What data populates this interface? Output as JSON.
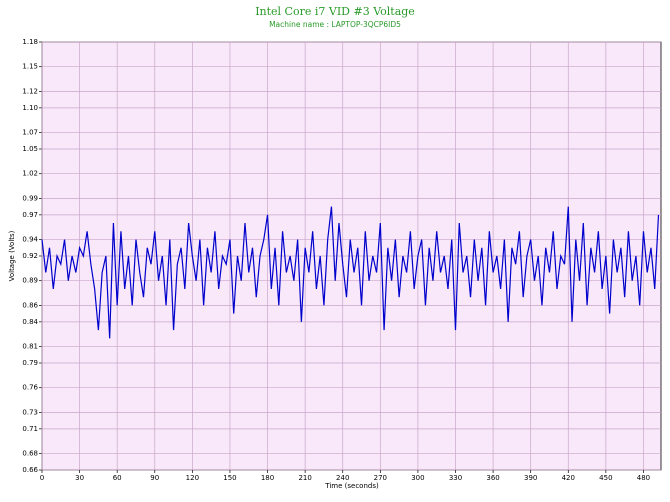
{
  "chart_data": {
    "type": "line",
    "title": "Intel Core i7 VID #3 Voltage",
    "subtitle": "Machine name : LAPTOP-3QCP6ID5",
    "x_label": "Time (seconds)",
    "y_label": "Voltage (Volts)",
    "grid": true,
    "xlim": [
      0,
      494
    ],
    "xticks": [
      0,
      30,
      60,
      90,
      120,
      150,
      180,
      210,
      240,
      270,
      300,
      330,
      360,
      390,
      420,
      450,
      480
    ],
    "ylim": [
      0.66,
      1.18
    ],
    "yticks": [
      0.66,
      0.68,
      0.71,
      0.73,
      0.76,
      0.79,
      0.81,
      0.84,
      0.86,
      0.89,
      0.92,
      0.94,
      0.97,
      0.99,
      1.02,
      1.05,
      1.07,
      {
        "value": 1.1,
        "label": "1.10"
      },
      1.12,
      1.15,
      1.18
    ],
    "x": [
      0,
      3,
      6,
      9,
      12,
      15,
      18,
      21,
      24,
      27,
      30,
      33,
      36,
      39,
      42,
      45,
      48,
      51,
      54,
      57,
      60,
      63,
      66,
      69,
      72,
      75,
      78,
      81,
      84,
      87,
      90,
      93,
      96,
      99,
      102,
      105,
      108,
      111,
      114,
      117,
      120,
      123,
      126,
      129,
      132,
      135,
      138,
      141,
      144,
      147,
      150,
      153,
      156,
      159,
      162,
      165,
      168,
      171,
      174,
      177,
      180,
      183,
      186,
      189,
      192,
      195,
      198,
      201,
      204,
      207,
      210,
      213,
      216,
      219,
      222,
      225,
      228,
      231,
      234,
      237,
      240,
      243,
      246,
      249,
      252,
      255,
      258,
      261,
      264,
      267,
      270,
      273,
      276,
      279,
      282,
      285,
      288,
      291,
      294,
      297,
      300,
      303,
      306,
      309,
      312,
      315,
      318,
      321,
      324,
      327,
      330,
      333,
      336,
      339,
      342,
      345,
      348,
      351,
      354,
      357,
      360,
      363,
      366,
      369,
      372,
      375,
      378,
      381,
      384,
      387,
      390,
      393,
      396,
      399,
      402,
      405,
      408,
      411,
      414,
      417,
      420,
      423,
      426,
      429,
      432,
      435,
      438,
      441,
      444,
      447,
      450,
      453,
      456,
      459,
      462,
      465,
      468,
      471,
      474,
      477,
      480,
      483,
      486,
      489,
      492
    ],
    "series": [
      {
        "name": "Voltage",
        "color": "#0000cc",
        "values": [
          0.94,
          0.9,
          0.93,
          0.88,
          0.92,
          0.91,
          0.94,
          0.89,
          0.92,
          0.9,
          0.93,
          0.92,
          0.95,
          0.91,
          0.88,
          0.83,
          0.9,
          0.92,
          0.82,
          0.96,
          0.86,
          0.95,
          0.88,
          0.92,
          0.86,
          0.94,
          0.9,
          0.87,
          0.93,
          0.91,
          0.95,
          0.89,
          0.92,
          0.86,
          0.94,
          0.83,
          0.91,
          0.93,
          0.88,
          0.96,
          0.92,
          0.89,
          0.94,
          0.86,
          0.93,
          0.9,
          0.95,
          0.88,
          0.92,
          0.91,
          0.94,
          0.85,
          0.92,
          0.89,
          0.96,
          0.9,
          0.93,
          0.87,
          0.92,
          0.94,
          0.97,
          0.88,
          0.93,
          0.86,
          0.95,
          0.9,
          0.92,
          0.89,
          0.94,
          0.84,
          0.93,
          0.9,
          0.95,
          0.88,
          0.92,
          0.86,
          0.94,
          0.98,
          0.89,
          0.96,
          0.91,
          0.87,
          0.94,
          0.9,
          0.93,
          0.86,
          0.95,
          0.89,
          0.92,
          0.9,
          0.96,
          0.83,
          0.93,
          0.89,
          0.94,
          0.87,
          0.92,
          0.9,
          0.95,
          0.88,
          0.92,
          0.94,
          0.86,
          0.93,
          0.89,
          0.95,
          0.9,
          0.92,
          0.88,
          0.94,
          0.83,
          0.96,
          0.9,
          0.92,
          0.87,
          0.94,
          0.89,
          0.93,
          0.86,
          0.95,
          0.9,
          0.92,
          0.88,
          0.94,
          0.84,
          0.93,
          0.91,
          0.95,
          0.87,
          0.92,
          0.94,
          0.89,
          0.92,
          0.86,
          0.93,
          0.9,
          0.95,
          0.88,
          0.92,
          0.91,
          0.98,
          0.84,
          0.94,
          0.89,
          0.96,
          0.86,
          0.93,
          0.9,
          0.95,
          0.88,
          0.92,
          0.85,
          0.94,
          0.9,
          0.93,
          0.87,
          0.95,
          0.89,
          0.92,
          0.86,
          0.95,
          0.9,
          0.93,
          0.88,
          0.97
        ]
      }
    ]
  }
}
